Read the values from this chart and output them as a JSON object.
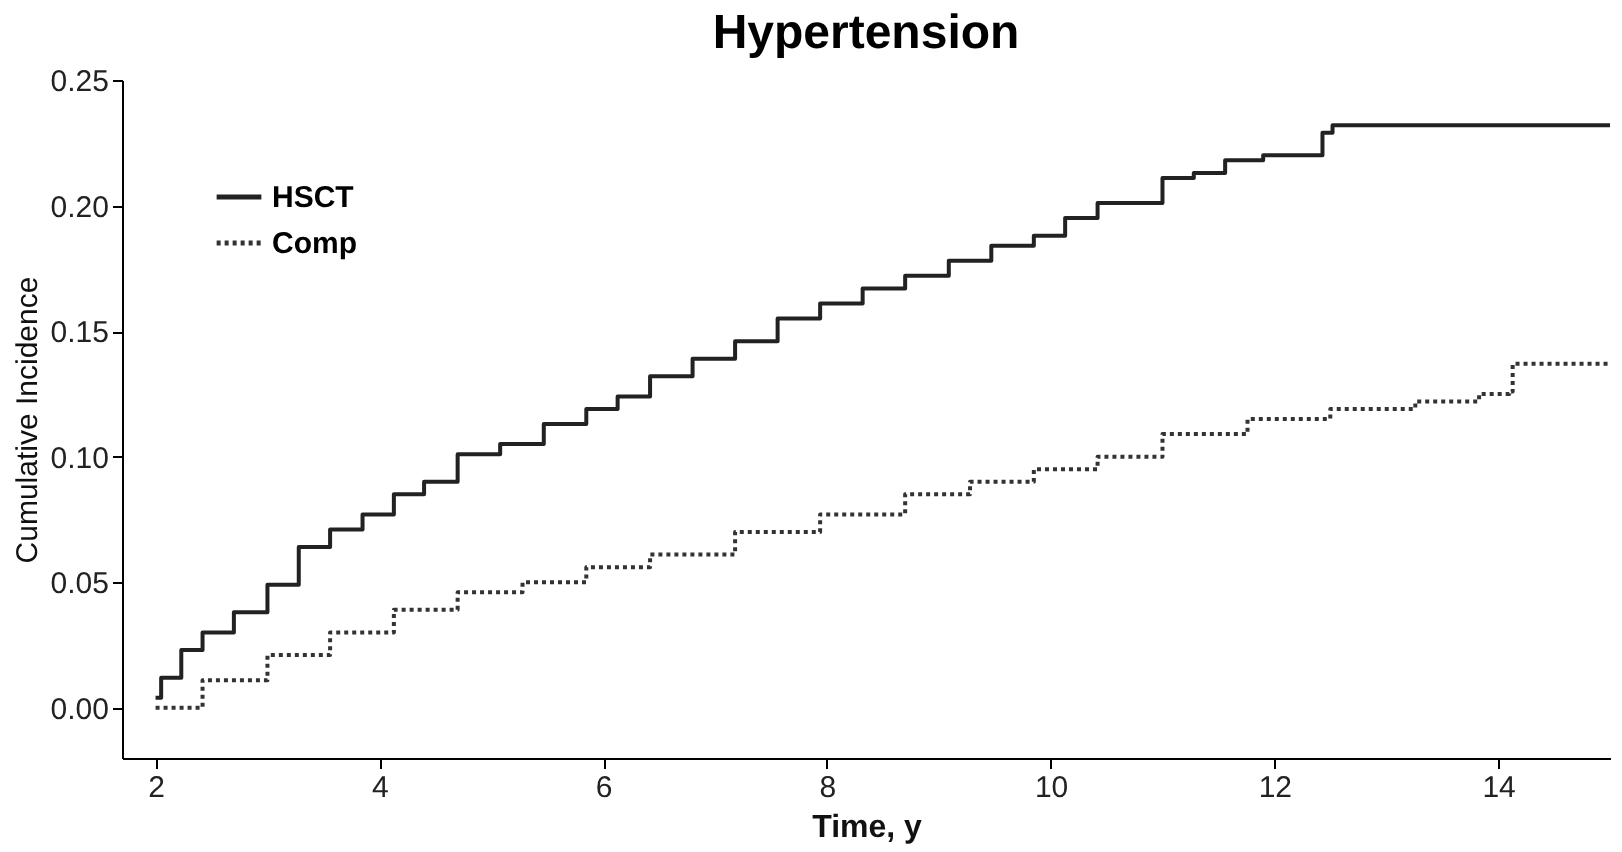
{
  "chart_data": {
    "type": "step",
    "title": "Hypertension",
    "xlabel": "Time, y",
    "ylabel": "Cumulative Incidence",
    "xlim": [
      1.7,
      15
    ],
    "xticks": [
      2,
      4,
      6,
      8,
      10,
      12,
      14
    ],
    "ylim": [
      -0.02,
      0.25
    ],
    "yticks": [
      {
        "value": 0,
        "label": "0.00"
      },
      0.05,
      {
        "value": 0.1,
        "label": "0.10"
      },
      0.15,
      {
        "value": 0.2,
        "label": "0.20"
      },
      0.25
    ],
    "grid": false,
    "legend": "top left",
    "series": [
      {
        "name": "HSCT",
        "color": "#222222",
        "line_style": "solid",
        "x": [
          2.0,
          2.05,
          2.23,
          2.42,
          2.7,
          3.0,
          3.28,
          3.56,
          3.85,
          4.13,
          4.4,
          4.7,
          5.08,
          5.47,
          5.85,
          6.13,
          6.42,
          6.8,
          7.18,
          7.56,
          7.94,
          8.32,
          8.7,
          9.09,
          9.47,
          9.85,
          10.13,
          10.42,
          11.0,
          11.28,
          11.56,
          11.9,
          12.36,
          12.43,
          12.52,
          15.0
        ],
        "values": [
          0.004,
          0.012,
          0.023,
          0.03,
          0.038,
          0.049,
          0.064,
          0.071,
          0.077,
          0.085,
          0.09,
          0.101,
          0.105,
          0.113,
          0.119,
          0.124,
          0.132,
          0.139,
          0.146,
          0.155,
          0.161,
          0.167,
          0.172,
          0.178,
          0.184,
          0.188,
          0.195,
          0.201,
          0.211,
          0.213,
          0.218,
          0.22,
          0.22,
          0.229,
          0.232,
          0.232
        ]
      },
      {
        "name": "Comp",
        "color": "#333333",
        "line_style": "dotted",
        "x": [
          2.0,
          2.42,
          3.0,
          3.56,
          4.13,
          4.7,
          5.28,
          5.85,
          6.42,
          7.18,
          7.94,
          8.7,
          9.28,
          9.85,
          10.42,
          11.0,
          11.76,
          12.5,
          13.26,
          13.83,
          14.1,
          14.13,
          15.0
        ],
        "values": [
          0.0,
          0.011,
          0.021,
          0.03,
          0.039,
          0.046,
          0.05,
          0.056,
          0.061,
          0.07,
          0.077,
          0.085,
          0.09,
          0.095,
          0.1,
          0.109,
          0.115,
          0.119,
          0.122,
          0.125,
          0.126,
          0.137,
          0.137
        ]
      }
    ]
  }
}
